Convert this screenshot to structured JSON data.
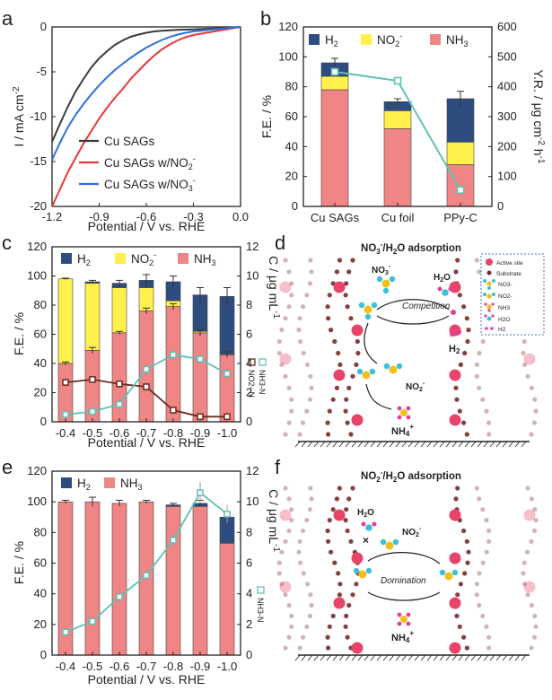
{
  "colors": {
    "h2": "#2E4C7E",
    "no2": "#FFF04D",
    "nh3": "#F08585",
    "teal": "#5FC1B5",
    "brown": "#6B2C1E",
    "cu_sags": "#3a3a3a",
    "cu_no2": "#E8363A",
    "cu_no3": "#2D6FE0",
    "site": "#E8446A",
    "substrate": "#7A2A2A"
  },
  "chart_data": [
    {
      "panel": "a",
      "type": "line",
      "xlabel": "Potential / V vs. RHE",
      "ylabel": "I / mA cm-2",
      "xlim": [
        -1.2,
        0.0
      ],
      "ylim": [
        -20,
        0
      ],
      "xticks": [
        "-1.2",
        "-0.9",
        "-0.6",
        "-0.3",
        "0.0"
      ],
      "yticks": [
        "0",
        "-5",
        "-10",
        "-15",
        "-20"
      ],
      "series": [
        {
          "name": "Cu SAGs",
          "color_key": "cu_sags",
          "x": [
            -1.2,
            -1.15,
            -1.1,
            -1.05,
            -1.0,
            -0.95,
            -0.9,
            -0.85,
            -0.8,
            -0.75,
            -0.7,
            -0.65,
            -0.6,
            -0.55,
            -0.5,
            -0.45,
            -0.4,
            -0.3,
            -0.2,
            -0.1,
            -0.05,
            0.0
          ],
          "y": [
            -12.8,
            -10.8,
            -8.9,
            -7.2,
            -5.8,
            -4.5,
            -3.5,
            -2.7,
            -2.0,
            -1.5,
            -1.1,
            -0.85,
            -0.65,
            -0.5,
            -0.42,
            -0.37,
            -0.33,
            -0.27,
            -0.2,
            -0.12,
            -0.06,
            0
          ]
        },
        {
          "name": "Cu SAGs w/NO2-",
          "color_key": "cu_no2",
          "x": [
            -1.2,
            -1.15,
            -1.1,
            -1.05,
            -1.0,
            -0.95,
            -0.9,
            -0.85,
            -0.8,
            -0.75,
            -0.7,
            -0.65,
            -0.6,
            -0.55,
            -0.5,
            -0.45,
            -0.4,
            -0.35,
            -0.3,
            -0.2,
            -0.1,
            0.0
          ],
          "y": [
            -20.0,
            -18.1,
            -16.2,
            -14.6,
            -13.0,
            -11.6,
            -10.2,
            -9.0,
            -7.9,
            -6.9,
            -5.8,
            -4.9,
            -4.0,
            -3.2,
            -2.5,
            -1.95,
            -1.5,
            -1.15,
            -0.9,
            -0.6,
            -0.3,
            0
          ]
        },
        {
          "name": "Cu SAGs w/NO3-",
          "color_key": "cu_no3",
          "x": [
            -1.2,
            -1.15,
            -1.1,
            -1.05,
            -1.0,
            -0.95,
            -0.9,
            -0.85,
            -0.8,
            -0.75,
            -0.7,
            -0.65,
            -0.6,
            -0.55,
            -0.5,
            -0.45,
            -0.4,
            -0.35,
            -0.3,
            -0.2,
            -0.1,
            0.0
          ],
          "y": [
            -14.8,
            -12.9,
            -11.2,
            -9.8,
            -8.6,
            -7.5,
            -6.5,
            -5.6,
            -4.8,
            -4.1,
            -3.45,
            -2.85,
            -2.3,
            -1.85,
            -1.45,
            -1.12,
            -0.85,
            -0.65,
            -0.5,
            -0.32,
            -0.15,
            0
          ]
        }
      ],
      "legend": [
        "Cu SAGs",
        "Cu SAGs w/NO",
        "Cu SAGs w/NO"
      ],
      "legend_sub": [
        "2",
        "3"
      ],
      "legend_sup": "-",
      "panel_label": "a"
    },
    {
      "panel": "b",
      "type": "bar",
      "categories": [
        "Cu SAGs",
        "Cu foil",
        "PPy-C"
      ],
      "ylabel": "F.E. / %",
      "ylim": [
        0,
        120
      ],
      "yticks": [
        "0",
        "20",
        "40",
        "60",
        "80",
        "100",
        "120"
      ],
      "y2label": "Y.R. / μg cm-2 h-1",
      "y2lim": [
        0,
        600
      ],
      "y2ticks": [
        "0",
        "100",
        "200",
        "300",
        "400",
        "500",
        "600"
      ],
      "series": [
        {
          "name": "NH3",
          "values": [
            78,
            52,
            28
          ]
        },
        {
          "name": "NO2-",
          "values": [
            9,
            12,
            15
          ]
        },
        {
          "name": "H2",
          "values": [
            9,
            6,
            29
          ]
        }
      ],
      "total_errors": [
        3,
        2,
        5
      ],
      "yield": [
        450,
        420,
        55
      ],
      "yield_errors": [
        15,
        10,
        12
      ],
      "legend": [
        "H",
        "NO",
        "NH"
      ],
      "panel_label": "b"
    },
    {
      "panel": "c",
      "type": "bar",
      "categories": [
        "-0.4",
        "-0.5",
        "-0.6",
        "-0.7",
        "-0.8",
        "-0.9",
        "-1.0"
      ],
      "xlabel": "Potential / V vs. RHE",
      "ylabel": "F.E. / %",
      "ylim": [
        0,
        120
      ],
      "yticks": [
        "0",
        "20",
        "40",
        "60",
        "80",
        "100",
        "120"
      ],
      "y2label": "C / μg mL-1",
      "y2lim": [
        0,
        12
      ],
      "y2ticks": [
        "0",
        "2",
        "4",
        "6",
        "8",
        "10",
        "12"
      ],
      "series": [
        {
          "name": "NH3",
          "values": [
            40,
            49,
            61,
            76,
            79,
            61,
            46
          ]
        },
        {
          "name": "NO2-",
          "values": [
            58,
            46,
            31,
            16,
            4,
            1,
            0
          ]
        },
        {
          "name": "H2",
          "values": [
            0,
            1,
            3,
            5,
            13,
            25,
            40
          ]
        }
      ],
      "total_errors": [
        0.5,
        1,
        2,
        4,
        4,
        5,
        6
      ],
      "nh3_errors": [
        1,
        2,
        1,
        2,
        2,
        2,
        2
      ],
      "no2n_conc": [
        2.7,
        2.9,
        2.6,
        2.4,
        0.8,
        0.35,
        0.35
      ],
      "nh4n_conc": [
        0.5,
        0.7,
        1.2,
        3.6,
        4.6,
        4.3,
        3.3
      ],
      "conc_errors": [
        0.3,
        0.2,
        0.3,
        0.3,
        0.3,
        0.3,
        0.3
      ],
      "legend": [
        "H",
        "NO",
        "NH"
      ],
      "right_series_labels": [
        "NO2--N",
        "NH3-N"
      ],
      "panel_label": "c"
    },
    {
      "panel": "e",
      "type": "bar",
      "categories": [
        "-0.4",
        "-0.5",
        "-0.6",
        "-0.7",
        "-0.8",
        "-0.9",
        "-1.0"
      ],
      "xlabel": "Potential / V vs. RHE",
      "ylabel": "F.E. / %",
      "ylim": [
        0,
        120
      ],
      "yticks": [
        "0",
        "20",
        "40",
        "60",
        "80",
        "100",
        "120"
      ],
      "y2label": "C / μg mL-1",
      "y2lim": [
        0,
        12
      ],
      "y2ticks": [
        "0",
        "2",
        "4",
        "6",
        "8",
        "10",
        "12"
      ],
      "series": [
        {
          "name": "NH3",
          "values": [
            100,
            100,
            99,
            100,
            97,
            97,
            73
          ]
        },
        {
          "name": "H2",
          "values": [
            0,
            0,
            0,
            0,
            1,
            2,
            17
          ]
        }
      ],
      "total_errors": [
        1,
        3,
        2,
        1,
        1,
        2,
        3
      ],
      "nh4n_conc": [
        1.5,
        2.2,
        3.8,
        5.2,
        7.5,
        10.6,
        9.2
      ],
      "conc_errors": [
        0.2,
        0.2,
        0.4,
        0.3,
        0.5,
        0.7,
        0.6
      ],
      "legend": [
        "H",
        "NH"
      ],
      "right_series_labels": [
        "NH3-N"
      ],
      "panel_label": "e"
    }
  ],
  "diagrams": {
    "d": {
      "panel_label": "d",
      "title": "NO3-/H2O adsorption",
      "title_parts": [
        "NO",
        "3",
        "-",
        "/H",
        "2",
        "O adsorption"
      ],
      "legend_items": [
        "Active site",
        "Substrate",
        "NO3-",
        "NO2-",
        "NH3",
        "H2O",
        "H2"
      ],
      "labels": {
        "no3": "NO3-",
        "h2o": "H2O",
        "competition": "Competition",
        "h2": "H2",
        "no2": "NO2-",
        "nh4": "NH4+"
      }
    },
    "f": {
      "panel_label": "f",
      "title": "NO2-/H2O adsorption",
      "title_parts": [
        "NO",
        "2",
        "-",
        "/H",
        "2",
        "O adsorption"
      ],
      "labels": {
        "h2o": "H2O",
        "no2": "NO2-",
        "domination": "Domination",
        "nh4": "NH4+"
      }
    }
  }
}
